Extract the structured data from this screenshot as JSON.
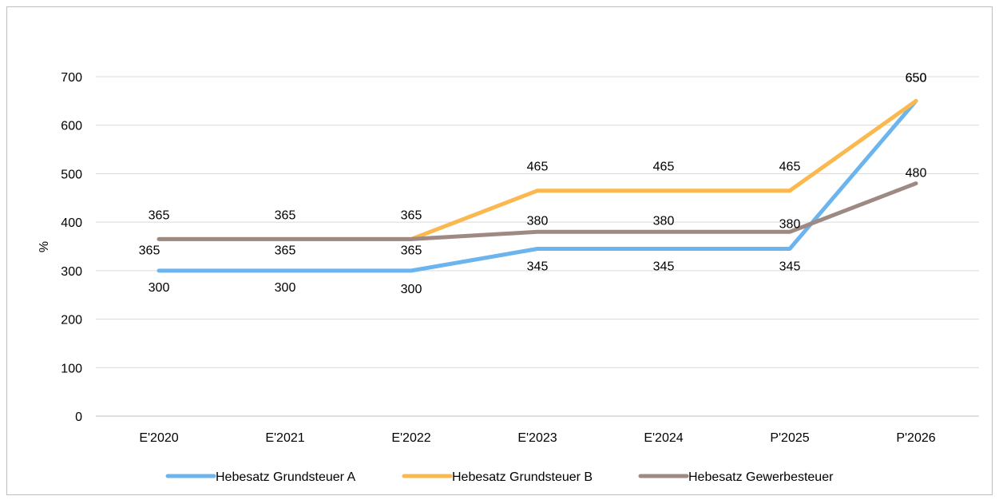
{
  "chart_data": {
    "type": "line",
    "title": "",
    "xlabel": "",
    "ylabel": "%",
    "ylim": [
      0,
      700
    ],
    "yticks": [
      0,
      100,
      200,
      300,
      400,
      500,
      600,
      700
    ],
    "grid": true,
    "legend_position": "bottom",
    "categories": [
      "E'2020",
      "E'2021",
      "E'2022",
      "E'2023",
      "E'2024",
      "P'2025",
      "P'2026"
    ],
    "series": [
      {
        "name": "Hebesatz Grundsteuer A",
        "color": "#6cb4ee",
        "values": [
          300,
          300,
          300,
          345,
          345,
          345,
          650
        ]
      },
      {
        "name": "Hebesatz Grundsteuer B",
        "color": "#fbb84f",
        "values": [
          365,
          365,
          365,
          465,
          465,
          465,
          650
        ]
      },
      {
        "name": "Hebesatz Gewerbesteuer",
        "color": "#9e8a83",
        "values": [
          365,
          365,
          365,
          380,
          380,
          380,
          480
        ]
      }
    ]
  }
}
